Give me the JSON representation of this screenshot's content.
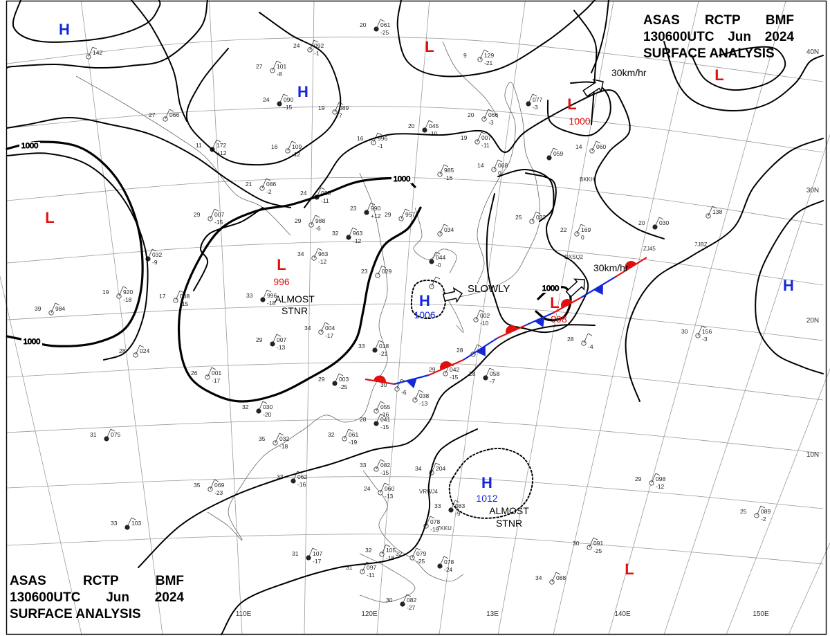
{
  "header": {
    "line1": [
      "ASAS",
      "RCTP",
      "BMF"
    ],
    "line2": [
      "130600UTC",
      "Jun",
      "2024"
    ],
    "line3": "SURFACE ANALYSIS"
  },
  "colors": {
    "high": "#1428d8",
    "low": "#e01010",
    "isobar": "#000000",
    "grid": "#999999"
  },
  "longitudes": [
    "110E",
    "120E",
    "13E",
    "140E",
    "150E"
  ],
  "latitudes": [
    "40N",
    "30N",
    "20N",
    "10N"
  ],
  "highs": [
    {
      "id": "h1",
      "symbol": "H"
    },
    {
      "id": "h2",
      "symbol": "H"
    },
    {
      "id": "h3",
      "symbol": "H",
      "pressure": "1006"
    },
    {
      "id": "h4",
      "symbol": "H",
      "pressure": "1012"
    },
    {
      "id": "h5",
      "symbol": "H"
    }
  ],
  "lows": [
    {
      "id": "l1",
      "symbol": "L"
    },
    {
      "id": "l2",
      "symbol": "L",
      "pressure": "1000"
    },
    {
      "id": "l3",
      "symbol": "L"
    },
    {
      "id": "l4",
      "symbol": "L"
    },
    {
      "id": "l5",
      "symbol": "L",
      "pressure": "996"
    },
    {
      "id": "l6",
      "symbol": "L",
      "pressure": "998"
    },
    {
      "id": "l7",
      "symbol": "L"
    }
  ],
  "isobar_labels": [
    "1000",
    "1000",
    "1000",
    "1000"
  ],
  "motion": {
    "m1": "30km/hr",
    "m2": "30km/hr",
    "m3": "SLOWLY",
    "stnr1": [
      "ALMOST",
      "STNR"
    ],
    "stnr2": [
      "ALMOST",
      "STNR"
    ]
  },
  "stations": [
    {
      "t": "20",
      "p": "061",
      "d": "-25"
    },
    {
      "t": "27",
      "p": "101",
      "d": "-8"
    },
    {
      "t": "24",
      "p": "092",
      "d": "-1"
    },
    {
      "t": "24",
      "p": "090",
      "d": "-15"
    },
    {
      "t": "19",
      "p": "089",
      "d": "7"
    },
    {
      "t": "27",
      "p": "066",
      "d": ""
    },
    {
      "t": "11",
      "p": "172",
      "d": "+12"
    },
    {
      "t": "16",
      "p": "109",
      "d": "-12"
    },
    {
      "t": "16",
      "p": "996",
      "d": "-1"
    },
    {
      "t": "20",
      "p": "045",
      "d": "-10"
    },
    {
      "t": "19",
      "p": "007",
      "d": "-11"
    },
    {
      "t": "20",
      "p": "066",
      "d": "-3"
    },
    {
      "t": "",
      "p": "077",
      "d": "-3"
    },
    {
      "t": "9",
      "p": "129",
      "d": "-21"
    },
    {
      "t": "14",
      "p": "068",
      "d": "0"
    },
    {
      "t": "",
      "p": "059",
      "d": ""
    },
    {
      "t": "14",
      "p": "060",
      "d": ""
    },
    {
      "t": "21",
      "p": "086",
      "d": "-2"
    },
    {
      "t": "24",
      "p": "035",
      "d": "-11"
    },
    {
      "t": "29",
      "p": "007",
      "d": "-15"
    },
    {
      "t": "29",
      "p": "988",
      "d": "-6"
    },
    {
      "t": "23",
      "p": "990",
      "d": "+12"
    },
    {
      "t": "29",
      "p": "957",
      "d": ""
    },
    {
      "t": "",
      "p": "985",
      "d": "-16"
    },
    {
      "t": "32",
      "p": "963",
      "d": "-12"
    },
    {
      "t": "25",
      "p": "032",
      "d": ""
    },
    {
      "t": "22",
      "p": "169",
      "d": "0"
    },
    {
      "t": "20",
      "p": "030",
      "d": ""
    },
    {
      "t": "",
      "p": "138",
      "d": ""
    },
    {
      "t": "34",
      "p": "963",
      "d": "-12"
    },
    {
      "t": "",
      "p": "032",
      "d": "-9"
    },
    {
      "t": "19",
      "p": "920",
      "d": "-18"
    },
    {
      "t": "17",
      "p": "008",
      "d": "-15"
    },
    {
      "t": "33",
      "p": "996",
      "d": "-18"
    },
    {
      "t": "23",
      "p": "029",
      "d": ""
    },
    {
      "t": "",
      "p": "034",
      "d": ""
    },
    {
      "t": "",
      "p": "044",
      "d": "-0"
    },
    {
      "t": "39",
      "p": "984",
      "d": ""
    },
    {
      "t": "34",
      "p": "004",
      "d": "-17"
    },
    {
      "t": "29",
      "p": "007",
      "d": "-13"
    },
    {
      "t": "28",
      "p": "024",
      "d": ""
    },
    {
      "t": "26",
      "p": "001",
      "d": "-17"
    },
    {
      "t": "33",
      "p": "018",
      "d": "-21"
    },
    {
      "t": "",
      "p": "002",
      "d": "-10"
    },
    {
      "t": "28",
      "p": "",
      "d": ""
    },
    {
      "t": "29",
      "p": "003",
      "d": "-25"
    },
    {
      "t": "30",
      "p": "",
      "d": "-6"
    },
    {
      "t": "29",
      "p": "042",
      "d": "-15"
    },
    {
      "t": "28",
      "p": "058",
      "d": "-7"
    },
    {
      "t": "30",
      "p": "156",
      "d": "-3"
    },
    {
      "t": "28",
      "p": "",
      "d": "-4"
    },
    {
      "t": "32",
      "p": "030",
      "d": "-20"
    },
    {
      "t": "",
      "p": "055",
      "d": "-16"
    },
    {
      "t": "",
      "p": "038",
      "d": "-13"
    },
    {
      "t": "28",
      "p": "041",
      "d": "-15"
    },
    {
      "t": "35",
      "p": "032",
      "d": "-18"
    },
    {
      "t": "32",
      "p": "061",
      "d": "-19"
    },
    {
      "t": "31",
      "p": "075",
      "d": ""
    },
    {
      "t": "33",
      "p": "082",
      "d": "-15"
    },
    {
      "t": "34",
      "p": "204",
      "d": ""
    },
    {
      "t": "33",
      "p": "062",
      "d": "-16"
    },
    {
      "t": "35",
      "p": "069",
      "d": "-23"
    },
    {
      "t": "24",
      "p": "060",
      "d": "-13"
    },
    {
      "t": "33",
      "p": "083",
      "d": "-9"
    },
    {
      "t": "29",
      "p": "098",
      "d": "-12"
    },
    {
      "t": "25",
      "p": "089",
      "d": "-2"
    },
    {
      "t": "33",
      "p": "103",
      "d": ""
    },
    {
      "t": "",
      "p": "078",
      "d": "-19"
    },
    {
      "t": "30",
      "p": "091",
      "d": "-25"
    },
    {
      "t": "31",
      "p": "107",
      "d": "-17"
    },
    {
      "t": "32",
      "p": "105",
      "d": "-18"
    },
    {
      "t": "32",
      "p": "079",
      "d": "-25"
    },
    {
      "t": "",
      "p": "078",
      "d": "-24"
    },
    {
      "t": "31",
      "p": "097",
      "d": "-11"
    },
    {
      "t": "34",
      "p": "088",
      "d": ""
    },
    {
      "t": "30",
      "p": "082",
      "d": "-27"
    },
    {
      "t": "",
      "p": "142",
      "d": ""
    },
    {
      "t": "",
      "p": "",
      "d": ""
    }
  ],
  "station_codes": [
    "BKKH",
    "7JBZ",
    "ZJ45",
    "DXSQ2",
    "VRWJ4",
    "7KKU"
  ]
}
